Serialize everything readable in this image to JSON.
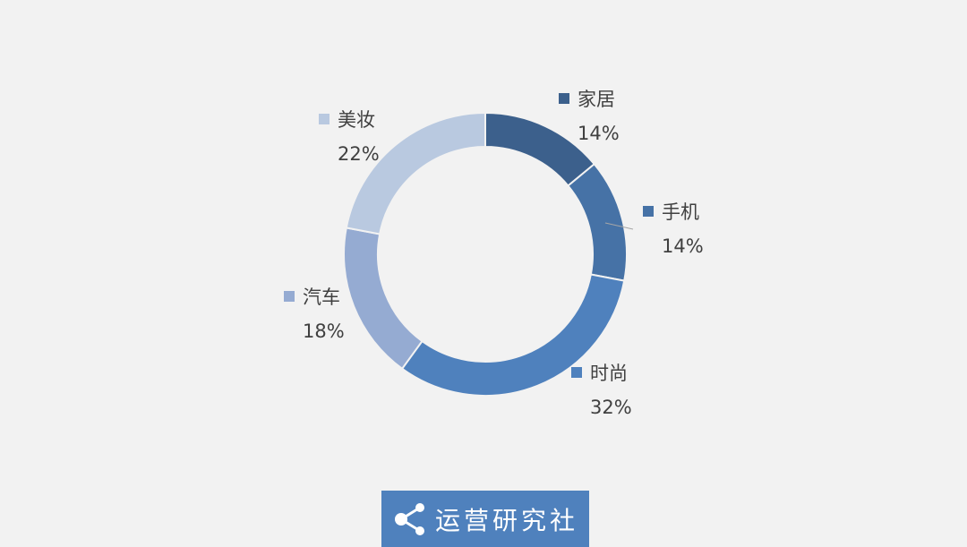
{
  "chart_data": {
    "type": "pie",
    "donut": true,
    "categories": [
      "家居",
      "手机",
      "时尚",
      "汽车",
      "美妆"
    ],
    "values": [
      14,
      14,
      32,
      18,
      22
    ],
    "labels": [
      "14%",
      "14%",
      "32%",
      "18%",
      "22%"
    ],
    "colors": [
      "#3c608c",
      "#4672a6",
      "#4f81bd",
      "#95abd2",
      "#b9c9e0"
    ],
    "start_angle": "12 o'clock, clockwise"
  },
  "logo": {
    "text": "运营研究社",
    "icon": "share-icon",
    "color": "#4f81bd"
  }
}
